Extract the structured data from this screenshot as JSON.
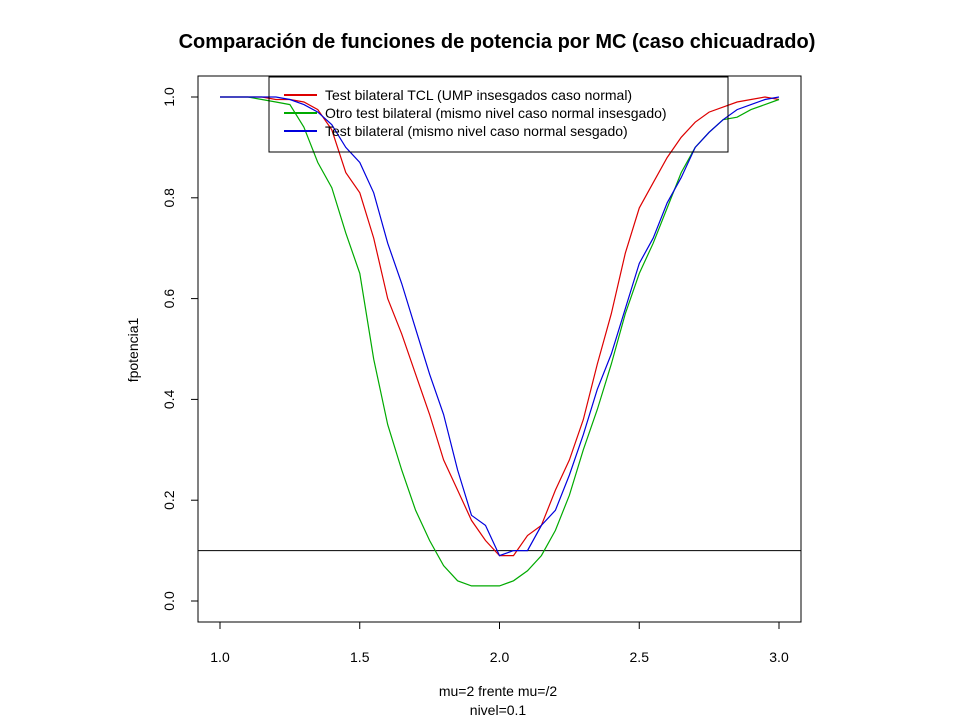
{
  "chart_data": {
    "type": "line",
    "title": "Comparación de funciones de potencia por MC (caso chicuadrado)",
    "xlabel": "mu=2 frente mu=/2",
    "xlabel_line2": "nivel=0.1",
    "ylabel": "fpotencia1",
    "xlim": [
      1.0,
      3.0
    ],
    "ylim": [
      0.0,
      1.0
    ],
    "x_ticks": [
      "1.0",
      "1.5",
      "2.0",
      "2.5",
      "3.0"
    ],
    "y_ticks": [
      "0.0",
      "0.2",
      "0.4",
      "0.6",
      "0.8",
      "1.0"
    ],
    "grid": false,
    "legend_position": "top",
    "hline": {
      "y": 0.1,
      "color": "#000000"
    },
    "x": [
      1.0,
      1.05,
      1.1,
      1.15,
      1.2,
      1.25,
      1.3,
      1.35,
      1.4,
      1.45,
      1.5,
      1.55,
      1.6,
      1.65,
      1.7,
      1.75,
      1.8,
      1.85,
      1.9,
      1.95,
      2.0,
      2.05,
      2.1,
      2.15,
      2.2,
      2.25,
      2.3,
      2.35,
      2.4,
      2.45,
      2.5,
      2.55,
      2.6,
      2.65,
      2.7,
      2.75,
      2.8,
      2.85,
      2.9,
      2.95,
      3.0
    ],
    "series": [
      {
        "name": "Test bilateral TCL (UMP insesgados caso normal)",
        "color": "#dd0000",
        "values": [
          1.0,
          1.0,
          1.0,
          1.0,
          0.995,
          0.995,
          0.99,
          0.975,
          0.935,
          0.85,
          0.81,
          0.72,
          0.6,
          0.53,
          0.45,
          0.37,
          0.28,
          0.22,
          0.16,
          0.12,
          0.09,
          0.09,
          0.13,
          0.15,
          0.22,
          0.28,
          0.36,
          0.47,
          0.57,
          0.69,
          0.78,
          0.83,
          0.88,
          0.92,
          0.95,
          0.97,
          0.98,
          0.99,
          0.995,
          1.0,
          0.995
        ]
      },
      {
        "name": "Otro test bilateral (mismo nivel caso normal insesgado)",
        "color": "#00aa00",
        "values": [
          1.0,
          1.0,
          1.0,
          0.995,
          0.99,
          0.985,
          0.94,
          0.87,
          0.82,
          0.73,
          0.65,
          0.48,
          0.35,
          0.26,
          0.18,
          0.12,
          0.07,
          0.04,
          0.03,
          0.03,
          0.03,
          0.04,
          0.06,
          0.09,
          0.14,
          0.21,
          0.3,
          0.38,
          0.47,
          0.57,
          0.65,
          0.71,
          0.78,
          0.85,
          0.9,
          0.93,
          0.955,
          0.96,
          0.975,
          0.985,
          0.995
        ]
      },
      {
        "name": "Test bilateral (mismo nivel caso normal sesgado)",
        "color": "#0000dd",
        "values": [
          1.0,
          1.0,
          1.0,
          1.0,
          1.0,
          0.995,
          0.985,
          0.97,
          0.945,
          0.9,
          0.87,
          0.81,
          0.71,
          0.63,
          0.54,
          0.45,
          0.37,
          0.26,
          0.17,
          0.15,
          0.09,
          0.1,
          0.1,
          0.15,
          0.18,
          0.25,
          0.33,
          0.42,
          0.49,
          0.58,
          0.67,
          0.72,
          0.79,
          0.84,
          0.9,
          0.93,
          0.955,
          0.975,
          0.985,
          0.995,
          1.0
        ]
      }
    ]
  }
}
